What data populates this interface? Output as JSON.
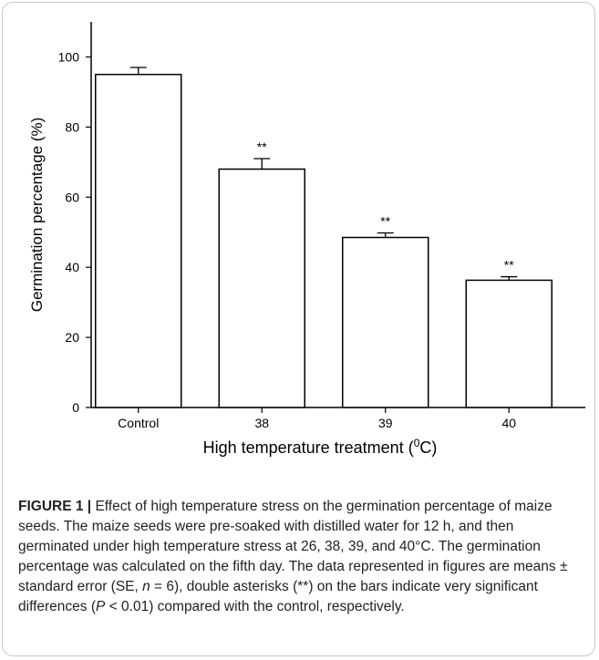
{
  "chart_data": {
    "type": "bar",
    "categories": [
      "Control",
      "38",
      "39",
      "40"
    ],
    "values": [
      95,
      68,
      48.5,
      36.3
    ],
    "errors": [
      2,
      3,
      1.3,
      1
    ],
    "annotations": [
      "",
      "**",
      "**",
      "**"
    ],
    "ylabel": "Germination percentage (%)",
    "xlabel_pre": "High temperature treatment (",
    "xlabel_sup": "0",
    "xlabel_post": "C)",
    "ylim": [
      0,
      110
    ],
    "yticks": [
      0,
      20,
      40,
      60,
      80,
      100
    ],
    "grid": false,
    "colors": {
      "bar_fill": "#ffffff",
      "bar_stroke": "#000000",
      "text": "#000000"
    }
  },
  "caption": {
    "label": "FIGURE 1 |",
    "part1": " Effect of high temperature stress on the germination percentage of maize seeds. The maize seeds were pre-soaked with distilled water for 12 h, and then germinated under high temperature stress at 26, 38, 39, and 40°C. The germination percentage was calculated on the fifth day. The data represented in figures are means ± standard error (SE, ",
    "n": "n",
    "part2": " = 6), double asterisks (**) on the bars indicate very significant differences (",
    "p": "P",
    "part3": " < 0.01) compared with the control, respectively."
  }
}
